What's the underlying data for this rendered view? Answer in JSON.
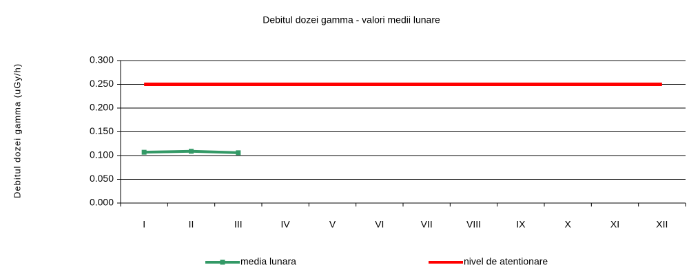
{
  "chart_data": {
    "type": "line",
    "title": "Debitul dozei gamma - valori medii lunare",
    "y_label": "Debitul dozei gamma  (uGy/h)",
    "categories": [
      "I",
      "II",
      "III",
      "IV",
      "V",
      "VI",
      "VII",
      "VIII",
      "IX",
      "X",
      "XI",
      "XII"
    ],
    "series": [
      {
        "name": "media lunara",
        "color": "#339966",
        "values": [
          0.107,
          0.109,
          0.106,
          null,
          null,
          null,
          null,
          null,
          null,
          null,
          null,
          null
        ]
      },
      {
        "name": "nivel de atentionare",
        "color": "#ff0000",
        "values": [
          0.25,
          0.25,
          0.25,
          0.25,
          0.25,
          0.25,
          0.25,
          0.25,
          0.25,
          0.25,
          0.25,
          0.25
        ]
      }
    ],
    "ylim": [
      0,
      0.3
    ],
    "yticks": [
      {
        "value": 0,
        "label": "0.000"
      },
      {
        "value": 0.05,
        "label": "0.050"
      },
      {
        "value": 0.1,
        "label": "0.100"
      },
      {
        "value": 0.15,
        "label": "0.150"
      },
      {
        "value": 0.2,
        "label": "0.200"
      },
      {
        "value": 0.25,
        "label": "0.250"
      },
      {
        "value": 0.3,
        "label": "0.300"
      }
    ],
    "grid": true,
    "legend": "bottom"
  }
}
